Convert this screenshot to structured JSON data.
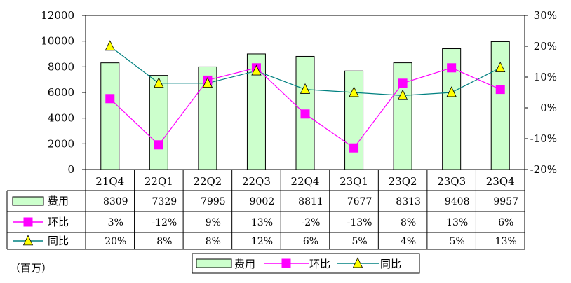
{
  "unit_label": "（百万）",
  "colors": {
    "bar_fill": "#ccffcc",
    "bar_stroke": "#000000",
    "qoq_line": "#ff00ff",
    "qoq_marker": "#ff00ff",
    "yoy_line": "#008080",
    "yoy_marker": "#ffff00"
  },
  "chart_data": {
    "type": "bar",
    "categories": [
      "21Q4",
      "22Q1",
      "22Q2",
      "22Q3",
      "22Q4",
      "23Q1",
      "23Q2",
      "23Q3",
      "23Q4"
    ],
    "series": [
      {
        "name": "费用",
        "type": "bar",
        "axis": "left",
        "values": [
          8309,
          7329,
          7995,
          9002,
          8811,
          7677,
          8313,
          9408,
          9957
        ]
      },
      {
        "name": "环比",
        "type": "line",
        "axis": "right",
        "values": [
          3,
          -12,
          9,
          13,
          -2,
          -13,
          8,
          13,
          6
        ]
      },
      {
        "name": "同比",
        "type": "line",
        "axis": "right",
        "values": [
          20,
          8,
          8,
          12,
          6,
          5,
          4,
          5,
          13
        ]
      }
    ],
    "left_axis": {
      "ylim": [
        0,
        12000
      ],
      "ticks": [
        "0",
        "2000",
        "4000",
        "6000",
        "8000",
        "10000",
        "12000"
      ]
    },
    "right_axis": {
      "ylim": [
        -20,
        30
      ],
      "ticks": [
        "-20%",
        "-10%",
        "0%",
        "10%",
        "20%",
        "30%"
      ]
    },
    "grid": false,
    "legend_position": "bottom",
    "legend": [
      "费用",
      "环比",
      "同比"
    ],
    "table": {
      "rows": [
        {
          "name": "费用",
          "cells": [
            "8309",
            "7329",
            "7995",
            "9002",
            "8811",
            "7677",
            "8313",
            "9408",
            "9957"
          ]
        },
        {
          "name": "环比",
          "cells": [
            "3%",
            "-12%",
            "9%",
            "13%",
            "-2%",
            "-13%",
            "8%",
            "13%",
            "6%"
          ]
        },
        {
          "name": "同比",
          "cells": [
            "20%",
            "8%",
            "8%",
            "12%",
            "6%",
            "5%",
            "4%",
            "5%",
            "13%"
          ]
        }
      ]
    }
  }
}
